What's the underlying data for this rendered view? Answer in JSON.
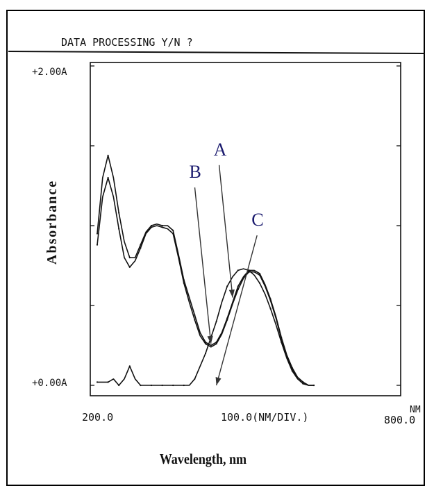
{
  "header": {
    "prompt": "DATA PROCESSING Y/N ?"
  },
  "chart_data": {
    "type": "line",
    "title": "",
    "xlabel": "Wavelength, nm",
    "ylabel": "Absorbance",
    "ylim": [
      0,
      2
    ],
    "y_unit": "A",
    "y_tick_labels": {
      "top": "+2.00A",
      "bottom": "+0.00A"
    },
    "x_tick_labels": {
      "left": "200.0",
      "middle": "100.0(NM/DIV.)",
      "right": "800.0",
      "unit": "NM"
    },
    "grid": false,
    "series": [
      {
        "name": "A",
        "x": [
          200,
          210,
          220,
          230,
          240,
          250,
          260,
          270,
          280,
          290,
          300,
          310,
          320,
          330,
          340,
          350,
          360,
          370,
          380,
          390,
          400,
          410,
          420,
          430,
          440,
          450,
          460,
          470,
          480,
          490,
          500,
          510,
          520,
          530,
          540,
          550,
          560,
          570,
          580,
          590,
          600
        ],
        "values": [
          0.95,
          1.3,
          1.44,
          1.3,
          1.08,
          0.9,
          0.8,
          0.8,
          0.88,
          0.96,
          1.0,
          1.01,
          1.0,
          1.0,
          0.97,
          0.82,
          0.66,
          0.55,
          0.44,
          0.33,
          0.27,
          0.25,
          0.27,
          0.33,
          0.42,
          0.52,
          0.62,
          0.68,
          0.72,
          0.72,
          0.7,
          0.63,
          0.54,
          0.43,
          0.3,
          0.19,
          0.11,
          0.05,
          0.02,
          0.0,
          0.0
        ]
      },
      {
        "name": "B",
        "x": [
          200,
          210,
          220,
          230,
          240,
          250,
          260,
          270,
          280,
          290,
          300,
          310,
          320,
          330,
          340,
          350,
          360,
          370,
          380,
          390,
          400,
          410,
          420,
          430,
          440,
          450,
          460,
          470,
          480,
          490,
          500,
          510,
          520,
          530,
          540,
          550,
          560,
          570,
          580,
          590,
          600
        ],
        "values": [
          0.88,
          1.18,
          1.3,
          1.18,
          0.98,
          0.8,
          0.74,
          0.78,
          0.86,
          0.95,
          0.99,
          1.0,
          0.99,
          0.98,
          0.95,
          0.8,
          0.64,
          0.52,
          0.41,
          0.31,
          0.26,
          0.24,
          0.26,
          0.32,
          0.41,
          0.51,
          0.6,
          0.67,
          0.71,
          0.71,
          0.69,
          0.62,
          0.53,
          0.42,
          0.29,
          0.18,
          0.1,
          0.05,
          0.02,
          0.0,
          0.0
        ]
      },
      {
        "name": "C",
        "x": [
          200,
          210,
          220,
          230,
          240,
          250,
          260,
          270,
          280,
          290,
          300,
          310,
          320,
          330,
          340,
          350,
          360,
          370,
          380,
          390,
          400,
          410,
          420,
          430,
          440,
          450,
          460,
          470,
          480,
          490,
          500,
          510,
          520,
          530,
          540,
          550,
          560,
          570,
          580,
          590,
          600
        ],
        "values": [
          0.02,
          0.02,
          0.02,
          0.04,
          0.0,
          0.04,
          0.12,
          0.04,
          0.0,
          0.0,
          0.0,
          0.0,
          0.0,
          0.0,
          0.0,
          0.0,
          0.0,
          0.0,
          0.04,
          0.12,
          0.2,
          0.3,
          0.4,
          0.52,
          0.62,
          0.68,
          0.72,
          0.73,
          0.72,
          0.69,
          0.64,
          0.57,
          0.48,
          0.38,
          0.27,
          0.17,
          0.09,
          0.04,
          0.01,
          0.0,
          0.0
        ]
      }
    ],
    "annotations": [
      {
        "label": "A",
        "text_at": [
          420,
          1.44
        ],
        "points_to": [
          450,
          0.55
        ]
      },
      {
        "label": "B",
        "text_at": [
          375,
          1.3
        ],
        "points_to": [
          410,
          0.26
        ]
      },
      {
        "label": "C",
        "text_at": [
          490,
          1.0
        ],
        "points_to": [
          420,
          0.0
        ]
      }
    ],
    "colors": {
      "ink": "#111111",
      "arrow": "#333333",
      "label": "#1a1a6e"
    }
  }
}
